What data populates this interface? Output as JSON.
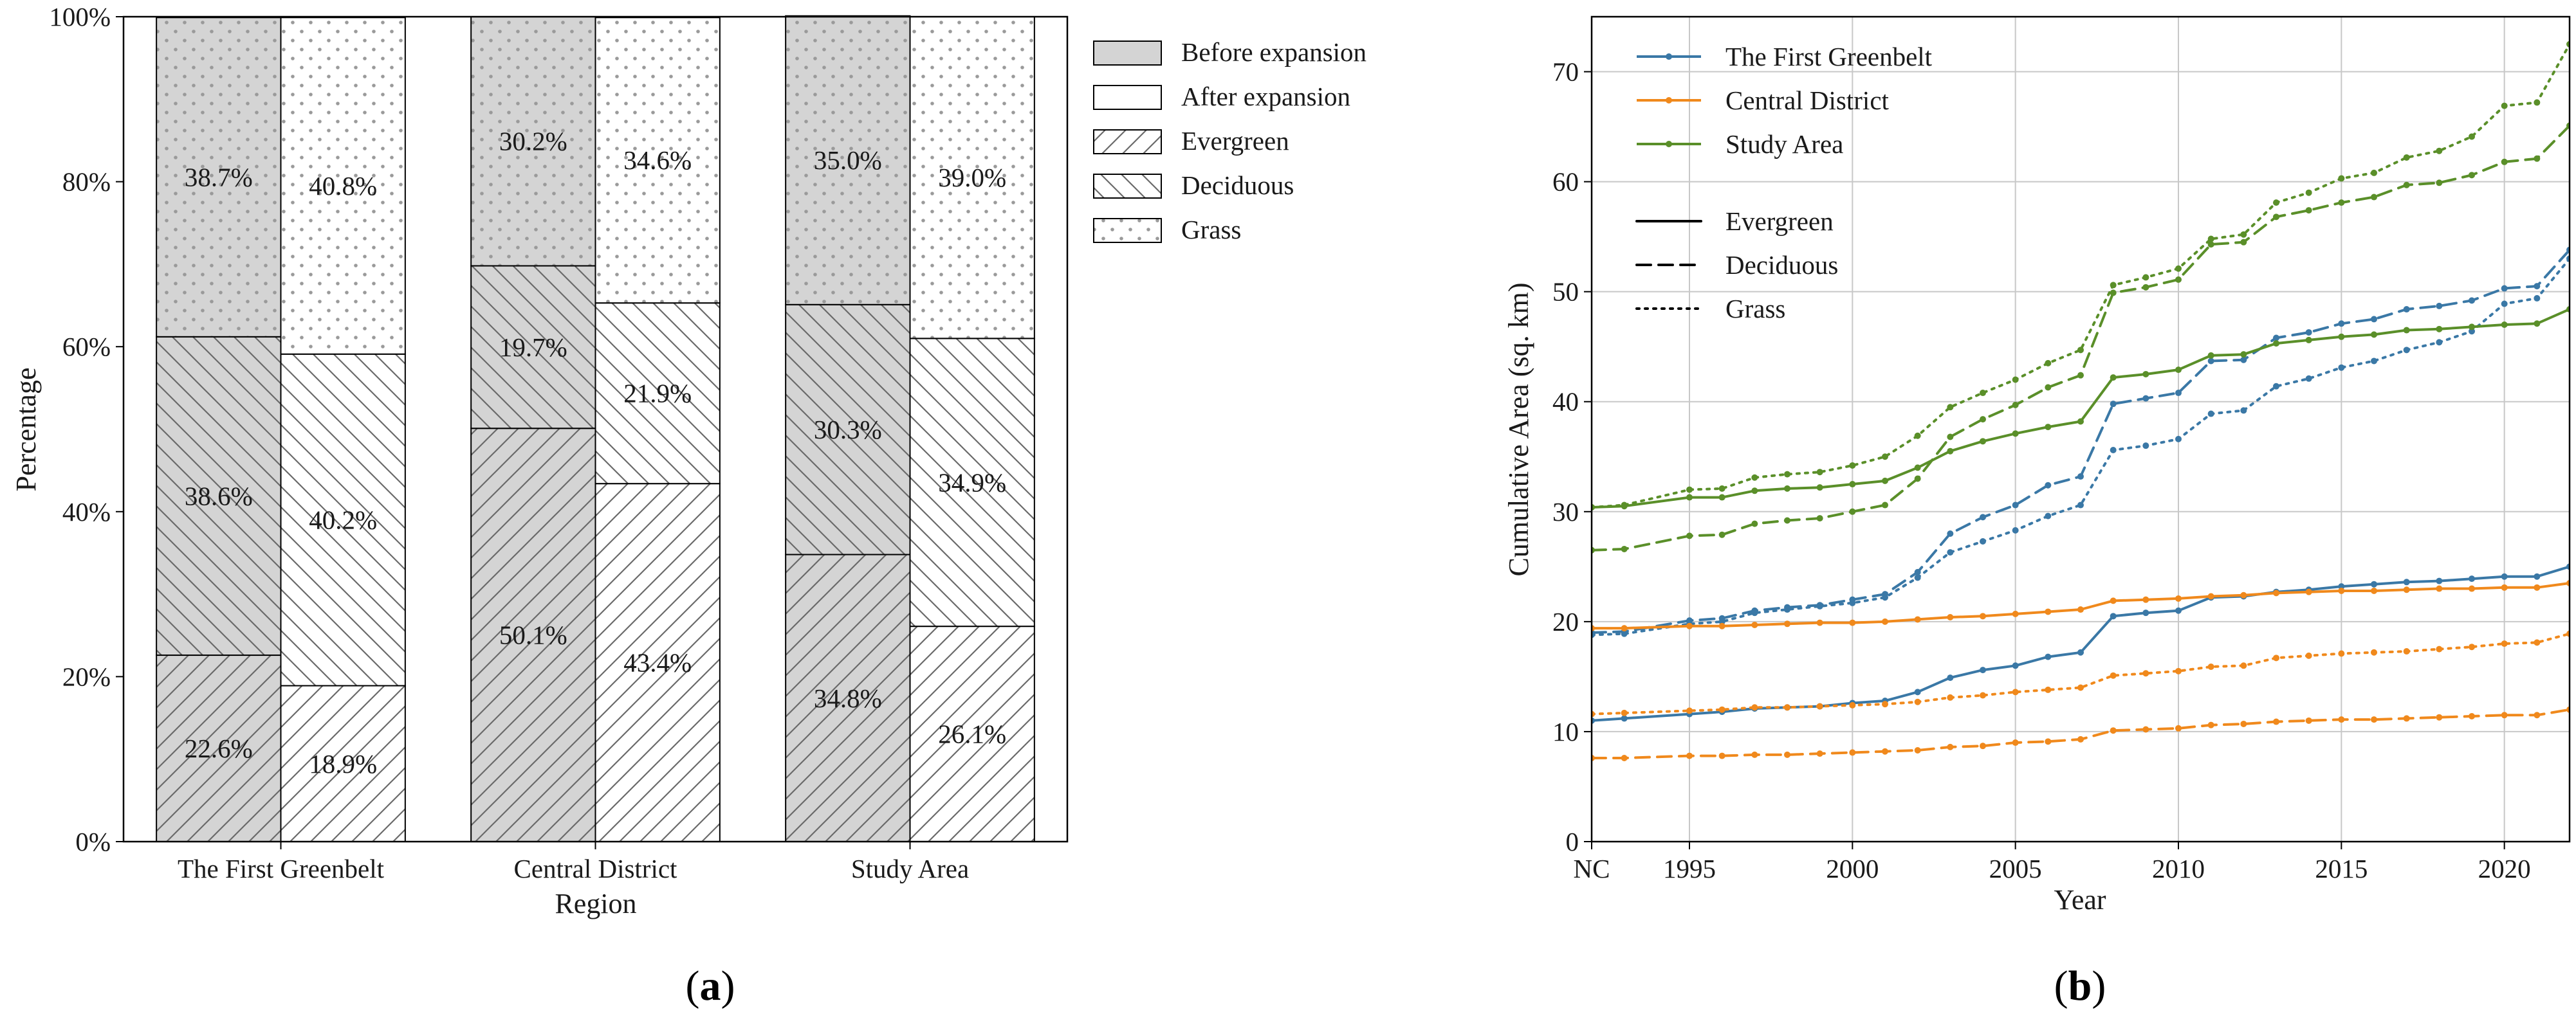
{
  "panels": {
    "a": {
      "label_open": "(",
      "label_letter": "a",
      "label_close": ")"
    },
    "b": {
      "label_open": "(",
      "label_letter": "b",
      "label_close": ")"
    }
  },
  "chart_data": [
    {
      "type": "bar",
      "subtype": "stacked-percent",
      "title": "",
      "xlabel": "Region",
      "ylabel": "Percentage",
      "ylim": [
        0,
        100
      ],
      "yticks": [
        "0%",
        "20%",
        "40%",
        "60%",
        "80%",
        "100%"
      ],
      "ytick_values": [
        0,
        20,
        40,
        60,
        80,
        100
      ],
      "categories": [
        "The First Greenbelt",
        "Central District",
        "Study Area"
      ],
      "legend": [
        {
          "key": "before",
          "name": "Before expansion",
          "pattern": "gray"
        },
        {
          "key": "after",
          "name": "After expansion",
          "pattern": "white"
        },
        {
          "key": "evergreen",
          "name": "Evergreen",
          "pattern": "hatch-forward"
        },
        {
          "key": "deciduous",
          "name": "Deciduous",
          "pattern": "hatch-back"
        },
        {
          "key": "grass",
          "name": "Grass",
          "pattern": "dots"
        }
      ],
      "legend_position": "outside-right",
      "bars": [
        {
          "category": "The First Greenbelt",
          "period": "before",
          "evergreen": 22.6,
          "deciduous": 38.6,
          "grass": 38.7,
          "labels": [
            "22.6%",
            "38.6%",
            "38.7%"
          ]
        },
        {
          "category": "The First Greenbelt",
          "period": "after",
          "evergreen": 18.9,
          "deciduous": 40.2,
          "grass": 40.8,
          "labels": [
            "18.9%",
            "40.2%",
            "40.8%"
          ]
        },
        {
          "category": "Central District",
          "period": "before",
          "evergreen": 50.1,
          "deciduous": 19.7,
          "grass": 30.2,
          "labels": [
            "50.1%",
            "19.7%",
            "30.2%"
          ]
        },
        {
          "category": "Central District",
          "period": "after",
          "evergreen": 43.4,
          "deciduous": 21.9,
          "grass": 34.6,
          "labels": [
            "43.4%",
            "21.9%",
            "34.6%"
          ]
        },
        {
          "category": "Study Area",
          "period": "before",
          "evergreen": 34.8,
          "deciduous": 30.3,
          "grass": 35.0,
          "labels": [
            "34.8%",
            "30.3%",
            "35.0%"
          ]
        },
        {
          "category": "Study Area",
          "period": "after",
          "evergreen": 26.1,
          "deciduous": 34.9,
          "grass": 39.0,
          "labels": [
            "26.1%",
            "34.9%",
            "39.0%"
          ]
        }
      ]
    },
    {
      "type": "line",
      "title": "",
      "xlabel": "Year",
      "ylabel": "Cumulative Area (sq. km)",
      "x": [
        "NC",
        1993,
        1995,
        1996,
        1997,
        1998,
        1999,
        2000,
        2001,
        2002,
        2003,
        2004,
        2005,
        2006,
        2007,
        2008,
        2009,
        2010,
        2011,
        2012,
        2013,
        2014,
        2015,
        2016,
        2017,
        2018,
        2019,
        2020,
        2021,
        2022
      ],
      "xlim": [
        1992,
        2022
      ],
      "xticks": [
        {
          "value": 1992,
          "label": "NC"
        },
        {
          "value": 1995,
          "label": "1995"
        },
        {
          "value": 2000,
          "label": "2000"
        },
        {
          "value": 2005,
          "label": "2005"
        },
        {
          "value": 2010,
          "label": "2010"
        },
        {
          "value": 2015,
          "label": "2015"
        },
        {
          "value": 2020,
          "label": "2020"
        }
      ],
      "ylim": [
        0,
        75
      ],
      "yticks": [
        0,
        10,
        20,
        30,
        40,
        50,
        60,
        70
      ],
      "grid": true,
      "colors": {
        "The First Greenbelt": "#3a78a6",
        "Central District": "#f0891c",
        "Study Area": "#5a8f29"
      },
      "legend_regions": [
        "The First Greenbelt",
        "Central District",
        "Study Area"
      ],
      "legend_styles": [
        {
          "name": "Evergreen",
          "dash": "solid"
        },
        {
          "name": "Deciduous",
          "dash": "dashed"
        },
        {
          "name": "Grass",
          "dash": "dotted"
        }
      ],
      "legend_position": "top-left",
      "series": [
        {
          "region": "The First Greenbelt",
          "type": "Evergreen",
          "dash": "solid",
          "values": [
            11.0,
            11.2,
            11.6,
            11.8,
            12.1,
            12.2,
            12.3,
            12.6,
            12.8,
            13.6,
            14.9,
            15.6,
            16.0,
            16.8,
            17.2,
            20.5,
            20.8,
            21.0,
            22.2,
            22.3,
            22.7,
            22.9,
            23.2,
            23.4,
            23.6,
            23.7,
            23.9,
            24.1,
            24.1,
            25.0
          ]
        },
        {
          "region": "The First Greenbelt",
          "type": "Deciduous",
          "dash": "dashed",
          "values": [
            19.0,
            19.1,
            20.1,
            20.3,
            21.0,
            21.3,
            21.5,
            22.0,
            22.5,
            24.5,
            28.0,
            29.5,
            30.6,
            32.4,
            33.2,
            39.8,
            40.3,
            40.8,
            43.7,
            43.8,
            45.8,
            46.3,
            47.1,
            47.5,
            48.4,
            48.7,
            49.2,
            50.3,
            50.5,
            53.8
          ]
        },
        {
          "region": "The First Greenbelt",
          "type": "Grass",
          "dash": "dotted",
          "values": [
            18.8,
            18.9,
            19.8,
            20.0,
            20.8,
            21.1,
            21.4,
            21.7,
            22.2,
            24.0,
            26.3,
            27.3,
            28.3,
            29.6,
            30.6,
            35.6,
            36.0,
            36.6,
            38.9,
            39.2,
            41.4,
            42.1,
            43.1,
            43.7,
            44.7,
            45.4,
            46.4,
            48.9,
            49.4,
            53.0
          ]
        },
        {
          "region": "Central District",
          "type": "Evergreen",
          "dash": "solid",
          "values": [
            19.4,
            19.4,
            19.6,
            19.6,
            19.7,
            19.8,
            19.9,
            19.9,
            20.0,
            20.2,
            20.4,
            20.5,
            20.7,
            20.9,
            21.1,
            21.9,
            22.0,
            22.1,
            22.3,
            22.4,
            22.6,
            22.7,
            22.8,
            22.8,
            22.9,
            23.0,
            23.0,
            23.1,
            23.1,
            23.5
          ]
        },
        {
          "region": "Central District",
          "type": "Deciduous",
          "dash": "dashed",
          "values": [
            7.6,
            7.6,
            7.8,
            7.8,
            7.9,
            7.9,
            8.0,
            8.1,
            8.2,
            8.3,
            8.6,
            8.7,
            9.0,
            9.1,
            9.3,
            10.1,
            10.2,
            10.3,
            10.6,
            10.7,
            10.9,
            11.0,
            11.1,
            11.1,
            11.2,
            11.3,
            11.4,
            11.5,
            11.5,
            12.0
          ]
        },
        {
          "region": "Central District",
          "type": "Grass",
          "dash": "dotted",
          "values": [
            11.6,
            11.7,
            11.9,
            12.0,
            12.2,
            12.2,
            12.3,
            12.4,
            12.5,
            12.7,
            13.1,
            13.3,
            13.6,
            13.8,
            14.0,
            15.1,
            15.3,
            15.5,
            15.9,
            16.0,
            16.7,
            16.9,
            17.1,
            17.2,
            17.3,
            17.5,
            17.7,
            18.0,
            18.1,
            18.9
          ]
        },
        {
          "region": "Study Area",
          "type": "Evergreen",
          "dash": "solid",
          "values": [
            30.4,
            30.5,
            31.3,
            31.3,
            31.9,
            32.1,
            32.2,
            32.5,
            32.8,
            34.0,
            35.5,
            36.4,
            37.1,
            37.7,
            38.2,
            42.2,
            42.5,
            42.9,
            44.2,
            44.3,
            45.3,
            45.6,
            45.9,
            46.1,
            46.5,
            46.6,
            46.8,
            47.0,
            47.1,
            48.4
          ]
        },
        {
          "region": "Study Area",
          "type": "Deciduous",
          "dash": "dashed",
          "values": [
            26.5,
            26.6,
            27.8,
            27.9,
            28.9,
            29.2,
            29.4,
            30.0,
            30.6,
            33.0,
            36.8,
            38.4,
            39.7,
            41.3,
            42.4,
            49.9,
            50.4,
            51.1,
            54.3,
            54.5,
            56.8,
            57.4,
            58.1,
            58.6,
            59.7,
            59.9,
            60.6,
            61.8,
            62.1,
            65.1
          ]
        },
        {
          "region": "Study Area",
          "type": "Grass",
          "dash": "dotted",
          "values": [
            30.4,
            30.6,
            32.0,
            32.1,
            33.1,
            33.4,
            33.6,
            34.2,
            35.0,
            36.9,
            39.5,
            40.8,
            42.0,
            43.5,
            44.7,
            50.6,
            51.3,
            52.1,
            54.8,
            55.2,
            58.1,
            59.0,
            60.3,
            60.8,
            62.2,
            62.8,
            64.1,
            66.9,
            67.2,
            72.5
          ]
        }
      ]
    }
  ]
}
